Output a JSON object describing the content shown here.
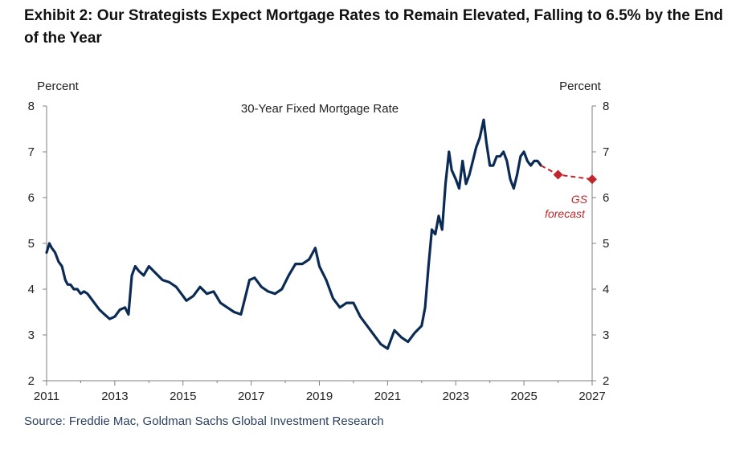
{
  "header": {
    "title": "Exhibit 2: Our Strategists Expect Mortgage Rates to Remain Elevated, Falling to 6.5% by the End of the Year"
  },
  "footer": {
    "source": "Source: Freddie Mac, Goldman Sachs Global Investment Research"
  },
  "chart_data": {
    "type": "line",
    "title": "30-Year Fixed Mortgage Rate",
    "y_unit_left": "Percent",
    "y_unit_right": "Percent",
    "xlim": [
      2011,
      2027
    ],
    "ylim": [
      2,
      8
    ],
    "x_ticks": [
      "2011",
      "2013",
      "2015",
      "2017",
      "2019",
      "2021",
      "2023",
      "2025",
      "2027"
    ],
    "y_ticks": [
      "2",
      "3",
      "4",
      "5",
      "6",
      "7",
      "8"
    ],
    "grid": false,
    "colors": {
      "actual": "#0b2b55",
      "forecast": "#c0272d",
      "axis": "#7f7f7f"
    },
    "annotation": {
      "lines": [
        "GS",
        "forecast"
      ],
      "color": "#c0272d"
    },
    "series": [
      {
        "style": "solid",
        "x": [
          2011.0,
          2011.08,
          2011.15,
          2011.25,
          2011.35,
          2011.45,
          2011.55,
          2011.62,
          2011.7,
          2011.8,
          2011.9,
          2012.0,
          2012.1,
          2012.2,
          2012.3,
          2012.4,
          2012.55,
          2012.7,
          2012.85,
          2013.0,
          2013.15,
          2013.3,
          2013.4,
          2013.5,
          2013.6,
          2013.7,
          2013.85,
          2014.0,
          2014.2,
          2014.4,
          2014.6,
          2014.8,
          2015.0,
          2015.1,
          2015.3,
          2015.5,
          2015.7,
          2015.9,
          2016.1,
          2016.3,
          2016.5,
          2016.7,
          2016.85,
          2016.95,
          2017.1,
          2017.3,
          2017.5,
          2017.7,
          2017.9,
          2018.1,
          2018.3,
          2018.5,
          2018.7,
          2018.88,
          2019.0,
          2019.2,
          2019.4,
          2019.6,
          2019.8,
          2020.0,
          2020.2,
          2020.4,
          2020.6,
          2020.8,
          2021.0,
          2021.2,
          2021.4,
          2021.6,
          2021.8,
          2022.0,
          2022.1,
          2022.2,
          2022.3,
          2022.4,
          2022.5,
          2022.6,
          2022.7,
          2022.8,
          2022.88,
          2023.0,
          2023.1,
          2023.2,
          2023.3,
          2023.4,
          2023.5,
          2023.6,
          2023.7,
          2023.82,
          2023.9,
          2024.0,
          2024.1,
          2024.2,
          2024.3,
          2024.4,
          2024.5,
          2024.6,
          2024.7,
          2024.8,
          2024.9,
          2025.0,
          2025.1,
          2025.2,
          2025.3,
          2025.4,
          2025.5
        ],
        "y": [
          4.8,
          5.0,
          4.9,
          4.8,
          4.6,
          4.5,
          4.2,
          4.1,
          4.1,
          4.0,
          4.0,
          3.9,
          3.95,
          3.9,
          3.8,
          3.7,
          3.55,
          3.45,
          3.35,
          3.4,
          3.55,
          3.6,
          3.45,
          4.3,
          4.5,
          4.4,
          4.3,
          4.5,
          4.35,
          4.2,
          4.15,
          4.05,
          3.85,
          3.75,
          3.85,
          4.05,
          3.9,
          3.95,
          3.7,
          3.6,
          3.5,
          3.45,
          3.9,
          4.2,
          4.25,
          4.05,
          3.95,
          3.9,
          4.0,
          4.3,
          4.55,
          4.55,
          4.65,
          4.9,
          4.5,
          4.2,
          3.8,
          3.6,
          3.7,
          3.7,
          3.4,
          3.2,
          3.0,
          2.8,
          2.7,
          3.1,
          2.95,
          2.85,
          3.05,
          3.2,
          3.6,
          4.5,
          5.3,
          5.2,
          5.6,
          5.3,
          6.3,
          7.0,
          6.6,
          6.4,
          6.2,
          6.8,
          6.3,
          6.5,
          6.8,
          7.1,
          7.3,
          7.7,
          7.2,
          6.7,
          6.7,
          6.9,
          6.9,
          7.0,
          6.8,
          6.4,
          6.2,
          6.5,
          6.9,
          7.0,
          6.8,
          6.7,
          6.8,
          6.8,
          6.7
        ]
      },
      {
        "style": "dashed",
        "x": [
          2025.5,
          2026.0,
          2027.0
        ],
        "y": [
          6.7,
          6.5,
          6.4
        ]
      }
    ]
  }
}
